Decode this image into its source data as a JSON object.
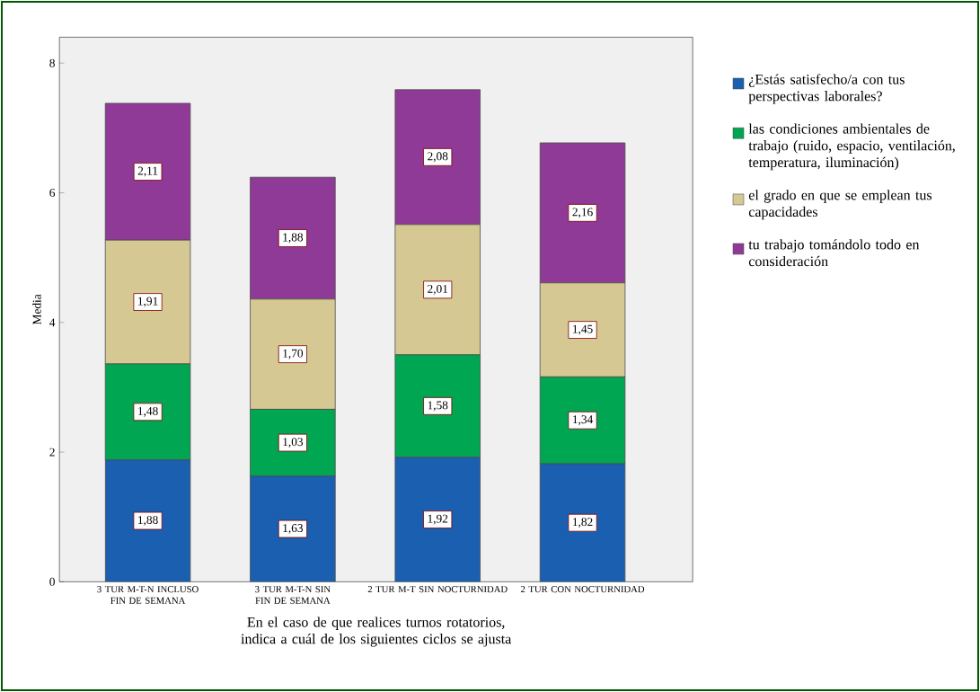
{
  "chart_data": {
    "type": "bar",
    "stacked": true,
    "ylabel": "Media",
    "xlabel": "En el caso de que realices turnos rotatorios, indica a cuál de los siguientes ciclos se ajusta",
    "categories": [
      "3 TUR M-T-N INCLUSO FIN DE SEMANA",
      "3 TUR M-T-N SIN FIN DE SEMANA",
      "2 TUR M-T SIN NOCTURNIDAD",
      "2 TUR CON NOCTURNIDAD"
    ],
    "series": [
      {
        "name": "¿Estás satisfecho/a con tus perspectivas laborales?",
        "color": "#1a5fb0",
        "values": [
          1.88,
          1.63,
          1.92,
          1.82
        ],
        "value_labels": [
          "1,88",
          "1,63",
          "1,92",
          "1,82"
        ]
      },
      {
        "name": "las condiciones ambientales de trabajo (ruido, espacio, ventilación, temperatura, iluminación)",
        "color": "#00a651",
        "values": [
          1.48,
          1.03,
          1.58,
          1.34
        ],
        "value_labels": [
          "1,48",
          "1,03",
          "1,58",
          "1,34"
        ]
      },
      {
        "name": "el grado en que se emplean tus capacidades",
        "color": "#d5c893",
        "values": [
          1.91,
          1.7,
          2.01,
          1.45
        ],
        "value_labels": [
          "1,91",
          "1,70",
          "2,01",
          "1,45"
        ]
      },
      {
        "name": "tu trabajo tomándolo todo en consideración",
        "color": "#8e3a96",
        "values": [
          2.11,
          1.88,
          2.08,
          2.16
        ],
        "value_labels": [
          "2,11",
          "1,88",
          "2,08",
          "2,16"
        ]
      }
    ],
    "ylim": [
      0,
      8.4
    ],
    "yticks": [
      0,
      2,
      4,
      6,
      8
    ],
    "legend": "top right"
  }
}
